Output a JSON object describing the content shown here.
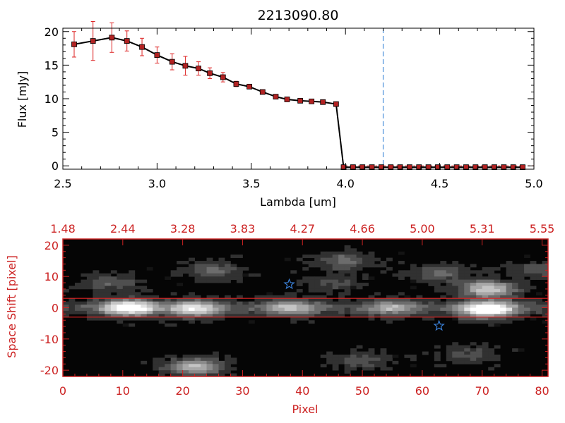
{
  "chart_data": [
    {
      "type": "line",
      "title": "2213090.80",
      "xlabel": "Lambda [um]",
      "ylabel": "Flux [mJy]",
      "xlim": [
        2.5,
        5.0
      ],
      "ylim": [
        -0.5,
        20.5
      ],
      "xticks": [
        "2.5",
        "3.0",
        "3.5",
        "4.0",
        "4.5",
        "5.0"
      ],
      "yticks": [
        "0",
        "5",
        "10",
        "15",
        "20"
      ],
      "xtick_values": [
        2.5,
        3.0,
        3.5,
        4.0,
        4.5,
        5.0
      ],
      "ytick_values": [
        0,
        5,
        10,
        15,
        20
      ],
      "vline_x": 4.2,
      "colors": {
        "line": "#000000",
        "marker": "#b22222",
        "error": "#dd2222",
        "vline": "#4a90d9",
        "zero_line": "#dd2222"
      },
      "series": [
        {
          "x": [
            2.56,
            2.66,
            2.76,
            2.84,
            2.92,
            3.0,
            3.08,
            3.15,
            3.22,
            3.28,
            3.35,
            3.42,
            3.49,
            3.56,
            3.63,
            3.69,
            3.76,
            3.82,
            3.88,
            3.95,
            3.99,
            4.04,
            4.09,
            4.14,
            4.19,
            4.24,
            4.29,
            4.34,
            4.39,
            4.44,
            4.49,
            4.54,
            4.59,
            4.64,
            4.69,
            4.74,
            4.79,
            4.84,
            4.89,
            4.94
          ],
          "y": [
            18.1,
            18.6,
            19.1,
            18.6,
            17.7,
            16.5,
            15.5,
            14.9,
            14.5,
            13.8,
            13.2,
            12.2,
            11.8,
            11.0,
            10.3,
            9.9,
            9.7,
            9.6,
            9.5,
            9.2,
            -0.2,
            -0.2,
            -0.2,
            -0.2,
            -0.2,
            -0.2,
            -0.2,
            -0.2,
            -0.2,
            -0.2,
            -0.2,
            -0.2,
            -0.2,
            -0.2,
            -0.2,
            -0.2,
            -0.2,
            -0.2,
            -0.2,
            -0.2
          ],
          "err": [
            1.9,
            2.9,
            2.2,
            1.5,
            1.3,
            1.2,
            1.2,
            1.4,
            1.0,
            0.8,
            0.7,
            0.4,
            0.3,
            0.3,
            0.3,
            0.2,
            0.2,
            0.2,
            0.2,
            0.2,
            0,
            0,
            0,
            0,
            0,
            0,
            0,
            0,
            0,
            0,
            0,
            0,
            0,
            0,
            0,
            0,
            0,
            0,
            0,
            0
          ]
        }
      ]
    },
    {
      "type": "heatmap",
      "xlabel": "Pixel",
      "ylabel": "Space Shift [pixel]",
      "xlim": [
        0,
        81
      ],
      "ylim": [
        -22,
        22
      ],
      "xticks": [
        "0",
        "10",
        "20",
        "30",
        "40",
        "50",
        "60",
        "70",
        "80"
      ],
      "yticks": [
        "-20",
        "-10",
        "0",
        "10",
        "20"
      ],
      "xtick_values": [
        0,
        10,
        20,
        30,
        40,
        50,
        60,
        70,
        80
      ],
      "ytick_values": [
        -20,
        -10,
        0,
        10,
        20
      ],
      "top_axis_labels": [
        "1.48",
        "2.44",
        "3.28",
        "3.83",
        "4.27",
        "4.66",
        "5.00",
        "5.31",
        "5.55"
      ],
      "aperture_lines_y": [
        3,
        -3
      ],
      "markers": [
        {
          "symbol": "star",
          "x": 37.8,
          "y": 7.5
        },
        {
          "symbol": "star",
          "x": 62.8,
          "y": -5.8
        }
      ],
      "sources": [
        {
          "x": 11,
          "y": 0,
          "peak": 1.0
        },
        {
          "x": 22,
          "y": -0.3,
          "peak": 0.75
        },
        {
          "x": 38,
          "y": 0,
          "peak": 0.55
        },
        {
          "x": 55,
          "y": 0,
          "peak": 0.5
        },
        {
          "x": 72,
          "y": 0,
          "peak": 0.45
        },
        {
          "x": 71,
          "y": 6,
          "peak": 0.8
        },
        {
          "x": 70,
          "y": -1,
          "peak": 0.65
        },
        {
          "x": 22,
          "y": -19,
          "peak": 0.7
        },
        {
          "x": 8,
          "y": 8,
          "peak": 0.3
        },
        {
          "x": 25,
          "y": 12,
          "peak": 0.35
        },
        {
          "x": 47,
          "y": 15,
          "peak": 0.4
        },
        {
          "x": 45,
          "y": 8,
          "peak": 0.25
        },
        {
          "x": 63,
          "y": 11,
          "peak": 0.35
        },
        {
          "x": 80,
          "y": 12,
          "peak": 0.3
        },
        {
          "x": 50,
          "y": -17,
          "peak": 0.25
        },
        {
          "x": 68,
          "y": -15,
          "peak": 0.25
        }
      ],
      "colors": {
        "axes": "#cc2222",
        "aperture": "#dd2222",
        "marker": "#3a7fd5"
      }
    }
  ]
}
